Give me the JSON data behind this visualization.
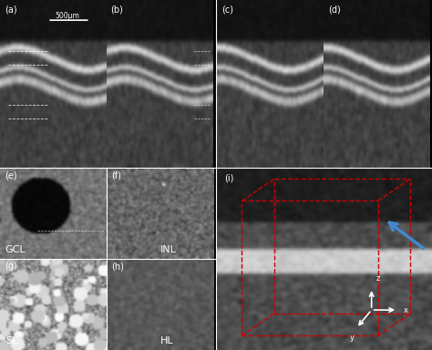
{
  "fig_width": 4.74,
  "fig_height": 3.84,
  "dpi": 100,
  "background_color": "#ffffff",
  "panels": {
    "a": {
      "label": "(a)",
      "row": 0,
      "col": 0
    },
    "b": {
      "label": "(b)",
      "row": 0,
      "col": 1
    },
    "c": {
      "label": "(c)",
      "row": 0,
      "col": 2
    },
    "d": {
      "label": "(d)",
      "row": 0,
      "col": 3
    },
    "e": {
      "label": "(e)",
      "row": 1,
      "col": 0,
      "sublabel": "GCL"
    },
    "f": {
      "label": "(f)",
      "row": 1,
      "col": 1,
      "sublabel": "INL"
    },
    "g": {
      "label": "(g)",
      "row": 2,
      "col": 0,
      "sublabel": "SL"
    },
    "h": {
      "label": "(h)",
      "row": 2,
      "col": 1,
      "sublabel": "HL"
    },
    "i": {
      "label": "(i)",
      "row": 1,
      "col": 2
    }
  },
  "scalebar_text": "500μm",
  "axis_labels": [
    "z",
    "x",
    "y"
  ],
  "label_color": "#ffffff",
  "label_fontsize": 7,
  "sublabel_fontsize": 8,
  "dashed_line_color": "#ffffff",
  "red_box_color": "#cc0000",
  "blue_arrow_color": "#4488cc",
  "axis_line_color": "#ffffff"
}
